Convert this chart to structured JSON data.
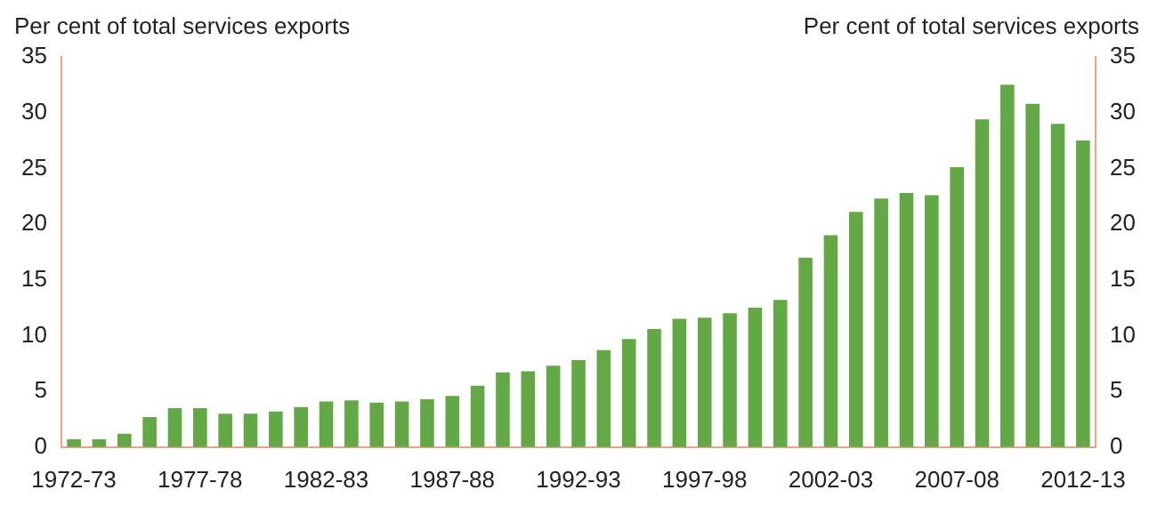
{
  "chart_data": {
    "type": "bar",
    "ylabel": "Per cent of total services exports",
    "y2label": "Per cent of total services exports",
    "categories": [
      "1972-73",
      null,
      null,
      null,
      null,
      "1977-78",
      null,
      null,
      null,
      null,
      "1982-83",
      null,
      null,
      null,
      null,
      "1987-88",
      null,
      null,
      null,
      null,
      "1992-93",
      null,
      null,
      null,
      null,
      "1997-98",
      null,
      null,
      null,
      null,
      "2002-03",
      null,
      null,
      null,
      null,
      "2007-08",
      null,
      null,
      null,
      null,
      "2012-13"
    ],
    "series": [
      {
        "color": "#62a845",
        "values": [
          0.7,
          0.7,
          1.2,
          2.7,
          3.5,
          3.5,
          3.0,
          3.0,
          3.2,
          3.6,
          4.1,
          4.2,
          4.0,
          4.1,
          4.3,
          4.6,
          5.5,
          6.7,
          6.8,
          7.3,
          7.8,
          8.7,
          9.7,
          10.6,
          11.5,
          11.6,
          12.0,
          12.5,
          13.2,
          17.0,
          19.0,
          21.1,
          22.3,
          22.8,
          22.6,
          25.1,
          29.4,
          32.5,
          30.8,
          29.0,
          27.5
        ]
      }
    ],
    "ylim": [
      0,
      35
    ],
    "yticks": [
      0,
      5,
      10,
      15,
      20,
      25,
      30,
      35
    ],
    "y2lim": [
      0,
      35
    ],
    "y2ticks": [
      0,
      5,
      10,
      15,
      20,
      25,
      30,
      35
    ],
    "grid": false,
    "legend": false
  }
}
